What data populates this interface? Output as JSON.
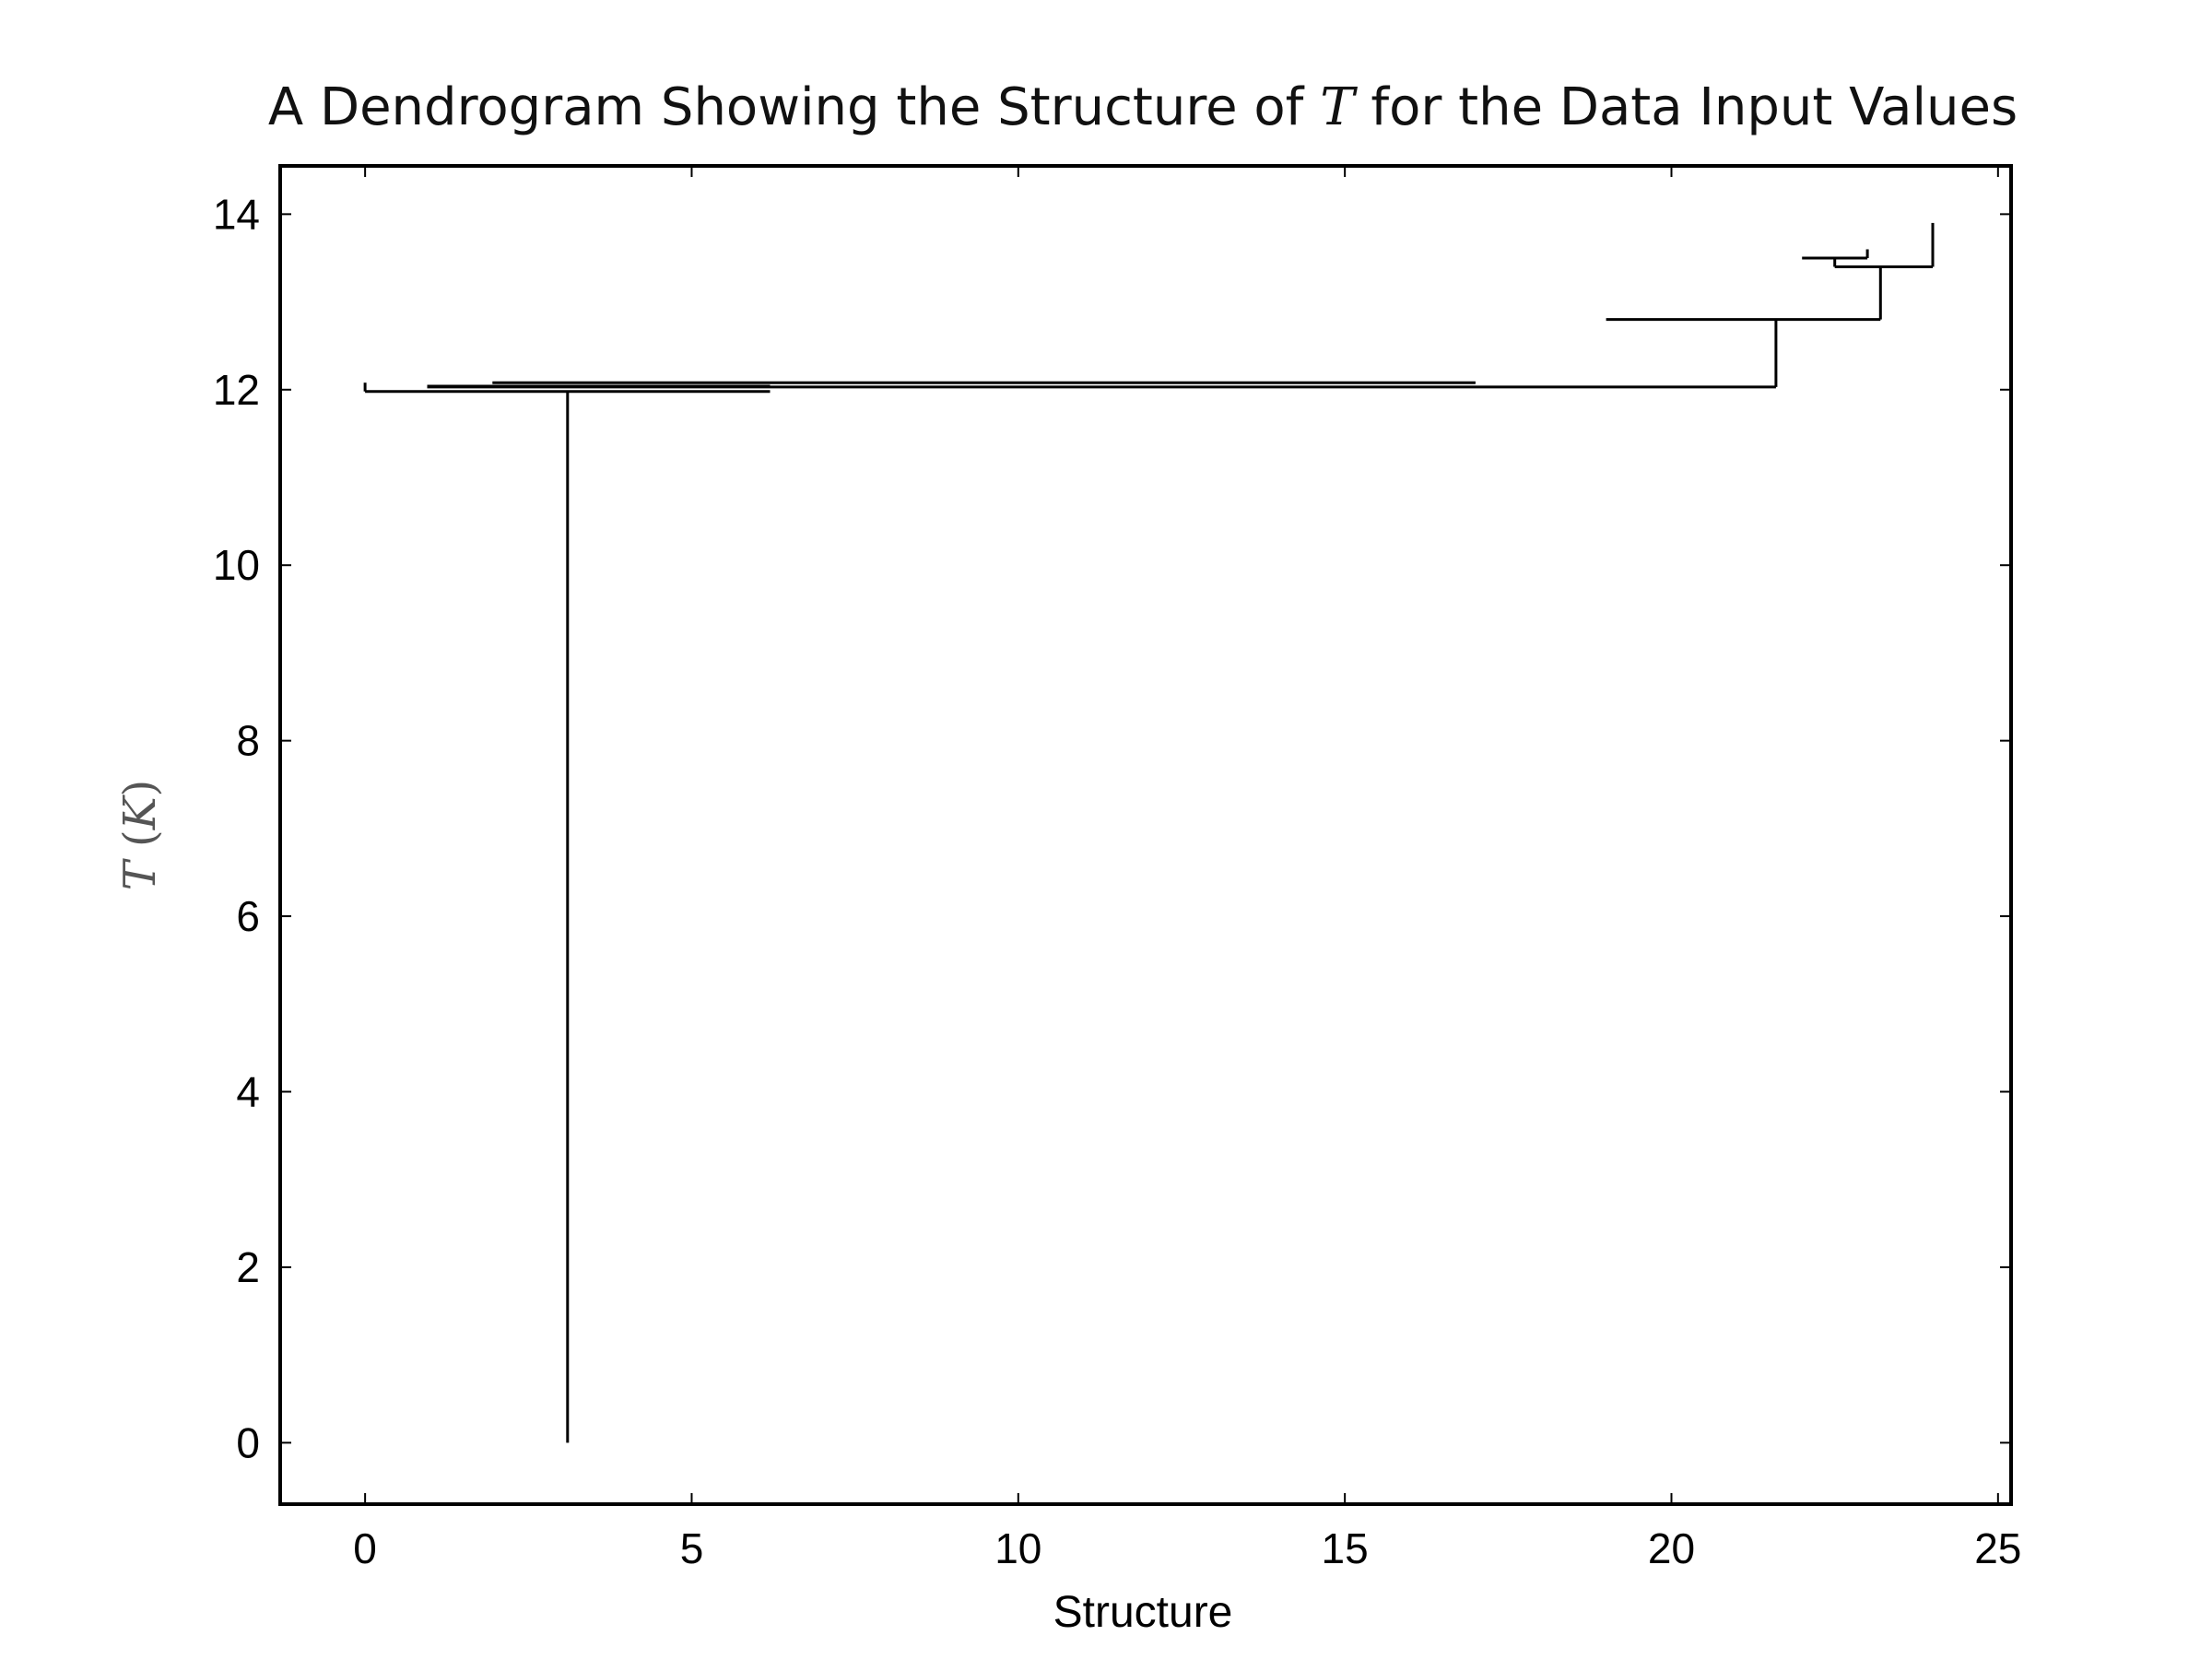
{
  "chart_data": {
    "type": "dendrogram",
    "title_parts": [
      "A Dendrogram Showing the Structure of ",
      "T",
      " for the Data Input Values"
    ],
    "xlabel": "Structure",
    "ylabel_parts": [
      "T",
      " (",
      "K",
      ")"
    ],
    "xlim": [
      -1.3,
      25.2
    ],
    "ylim": [
      -0.7,
      14.55
    ],
    "xticks": [
      "0",
      "5",
      "10",
      "15",
      "20",
      "25"
    ],
    "xtick_values": [
      0,
      5,
      10,
      15,
      20,
      25
    ],
    "yticks": [
      "0",
      "2",
      "4",
      "6",
      "8",
      "10",
      "12",
      "14"
    ],
    "ytick_values": [
      0,
      2,
      4,
      6,
      8,
      10,
      12,
      14
    ],
    "grid": false,
    "color": "#000000",
    "segments": [
      {
        "x": [
          3.1,
          3.1
        ],
        "y": [
          0,
          11.98
        ]
      },
      {
        "x": [
          0,
          0
        ],
        "y": [
          11.98,
          12.08
        ]
      },
      {
        "x": [
          0,
          6.2
        ],
        "y": [
          11.98,
          11.98
        ]
      },
      {
        "x": [
          0.95,
          6.2
        ],
        "y": [
          12.04,
          12.04
        ]
      },
      {
        "x": [
          1.95,
          17.0
        ],
        "y": [
          12.08,
          12.08
        ]
      },
      {
        "x": [
          0.95,
          21.6
        ],
        "y": [
          12.03,
          12.03
        ]
      },
      {
        "x": [
          21.6,
          21.6
        ],
        "y": [
          12.03,
          12.8
        ]
      },
      {
        "x": [
          19.0,
          23.2
        ],
        "y": [
          12.8,
          12.8
        ]
      },
      {
        "x": [
          23.2,
          23.2
        ],
        "y": [
          12.8,
          13.4
        ]
      },
      {
        "x": [
          22.5,
          24.0
        ],
        "y": [
          13.4,
          13.4
        ]
      },
      {
        "x": [
          24.0,
          24.0
        ],
        "y": [
          13.4,
          13.9
        ]
      },
      {
        "x": [
          22.5,
          22.5
        ],
        "y": [
          13.4,
          13.5
        ]
      },
      {
        "x": [
          22.0,
          23.0
        ],
        "y": [
          13.5,
          13.5
        ]
      },
      {
        "x": [
          23.0,
          23.0
        ],
        "y": [
          13.5,
          13.6
        ]
      }
    ]
  }
}
